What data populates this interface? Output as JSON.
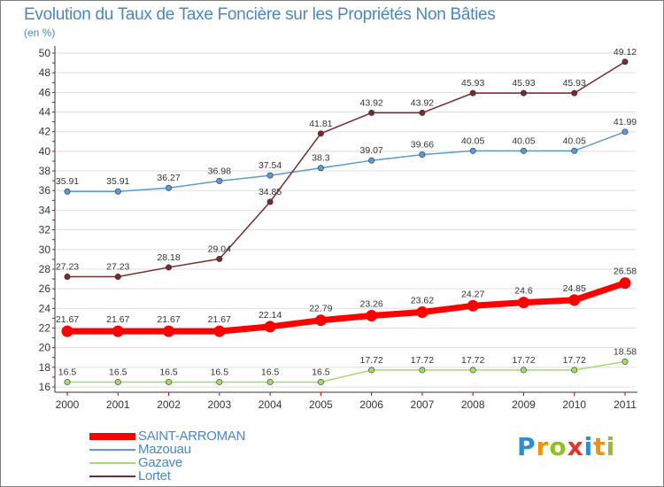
{
  "title": "Evolution du Taux de Taxe Foncière sur les Propriétés Non Bâties",
  "unit_label": "(en %)",
  "logo": {
    "letters": [
      "P",
      "r",
      "o",
      "x",
      "i",
      "t",
      "i"
    ],
    "colors": [
      "#2b8fd6",
      "#f39200",
      "#93c01f",
      "#e6332a",
      "#2b8fd6",
      "#f39200",
      "#93c01f"
    ]
  },
  "chart_data": {
    "type": "line",
    "title": "Evolution du Taux de Taxe Foncière sur les Propriétés Non Bâties",
    "ylabel": "(en %)",
    "xlabel": "",
    "x": [
      "2000",
      "2001",
      "2002",
      "2003",
      "2004",
      "2005",
      "2006",
      "2007",
      "2008",
      "2009",
      "2010",
      "2011"
    ],
    "ylim": [
      16,
      50
    ],
    "yticks": [
      16,
      18,
      20,
      22,
      24,
      26,
      28,
      30,
      32,
      34,
      36,
      38,
      40,
      42,
      44,
      46,
      48,
      50
    ],
    "grid": "horizontal",
    "legend_position": "bottom-left",
    "series": [
      {
        "name": "SAINT-ARROMAN",
        "color": "#ff0000",
        "emphasis": true,
        "values": [
          21.67,
          21.67,
          21.67,
          21.67,
          22.14,
          22.79,
          23.26,
          23.62,
          24.27,
          24.6,
          24.85,
          26.58
        ],
        "labels": [
          "21.67",
          "21.67",
          "21.67",
          "21.67",
          "22.14",
          "22.79",
          "23.26",
          "23.62",
          "24.27",
          "24.6",
          "24.85",
          "26.58"
        ]
      },
      {
        "name": "Mazouau",
        "color": "#5b9bd5",
        "values": [
          35.91,
          35.91,
          36.27,
          36.98,
          37.54,
          38.3,
          39.07,
          39.66,
          40.05,
          40.05,
          40.05,
          41.99
        ],
        "labels": [
          "35.91",
          "35.91",
          "36.27",
          "36.98",
          "37.54",
          "38.3",
          "39.07",
          "39.66",
          "40.05",
          "40.05",
          "40.05",
          "41.99"
        ]
      },
      {
        "name": "Gazave",
        "color": "#a6d96a",
        "values": [
          16.5,
          16.5,
          16.5,
          16.5,
          16.5,
          16.5,
          17.72,
          17.72,
          17.72,
          17.72,
          17.72,
          18.58
        ],
        "labels": [
          "16.5",
          "16.5",
          "16.5",
          "16.5",
          "16.5",
          "16.5",
          "17.72",
          "17.72",
          "17.72",
          "17.72",
          "17.72",
          "18.58"
        ]
      },
      {
        "name": "Lortet",
        "color": "#7a2a2a",
        "values": [
          27.23,
          27.23,
          28.18,
          29.04,
          34.85,
          41.81,
          43.92,
          43.92,
          45.93,
          45.93,
          45.93,
          49.12
        ],
        "labels": [
          "27.23",
          "27.23",
          "28.18",
          "29.04",
          "34.85",
          "41.81",
          "43.92",
          "43.92",
          "45.93",
          "45.93",
          "45.93",
          "49.12"
        ]
      }
    ]
  }
}
